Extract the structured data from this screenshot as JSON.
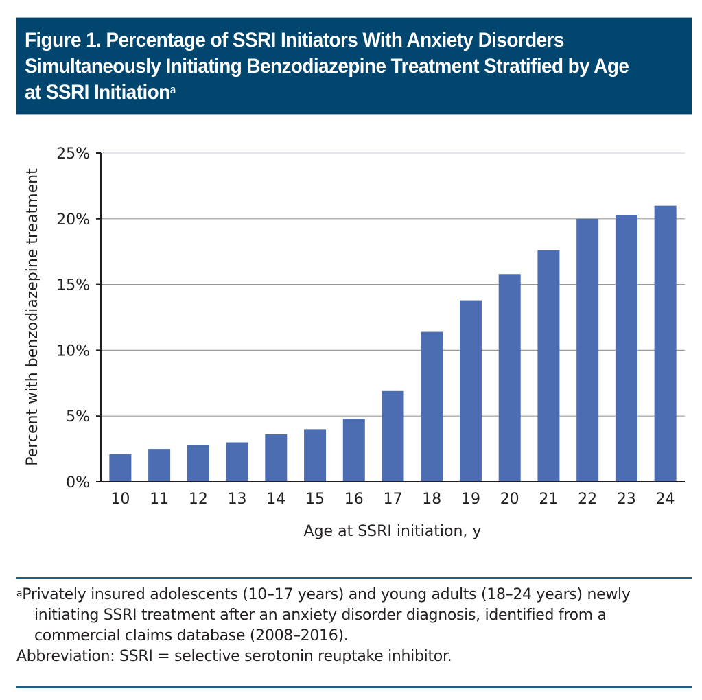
{
  "figure": {
    "title": "Figure 1. Percentage of SSRI Initiators With Anxiety Disorders Simultaneously Initiating Benzodiazepine Treatment Stratified by Age at SSRI Initiation",
    "title_superscript": "a",
    "colors": {
      "title_background": "#00466f",
      "bar": "#4d6db3",
      "rule": "#1c5f8a"
    }
  },
  "chart_data": {
    "type": "bar",
    "title": "Percentage of SSRI Initiators With Anxiety Disorders Simultaneously Initiating Benzodiazepine Treatment Stratified by Age at SSRI Initiation",
    "xlabel": "Age at SSRI initiation, y",
    "ylabel": "Percent with benzodiazepine treatment",
    "categories": [
      "10",
      "11",
      "12",
      "13",
      "14",
      "15",
      "16",
      "17",
      "18",
      "19",
      "20",
      "21",
      "22",
      "23",
      "24"
    ],
    "values": [
      2.1,
      2.5,
      2.8,
      3.0,
      3.6,
      4.0,
      4.8,
      6.9,
      11.4,
      13.8,
      15.8,
      17.6,
      20.0,
      20.3,
      21.0
    ],
    "unit": "%",
    "ylim": [
      0,
      25
    ],
    "yticks": [
      0,
      5,
      10,
      15,
      20,
      25
    ],
    "ytick_labels": [
      "0%",
      "5%",
      "10%",
      "15%",
      "20%",
      "25%"
    ],
    "grid": true,
    "legend": "none"
  },
  "footnotes": {
    "a_marker": "a",
    "a_text": "Privately insured adolescents (10–17 years) and young adults (18–24 years) newly initiating SSRI treatment after an anxiety disorder diagnosis, identified from a commercial claims database (2008–2016).",
    "abbreviation": "Abbreviation: SSRI = selective serotonin reuptake inhibitor."
  }
}
